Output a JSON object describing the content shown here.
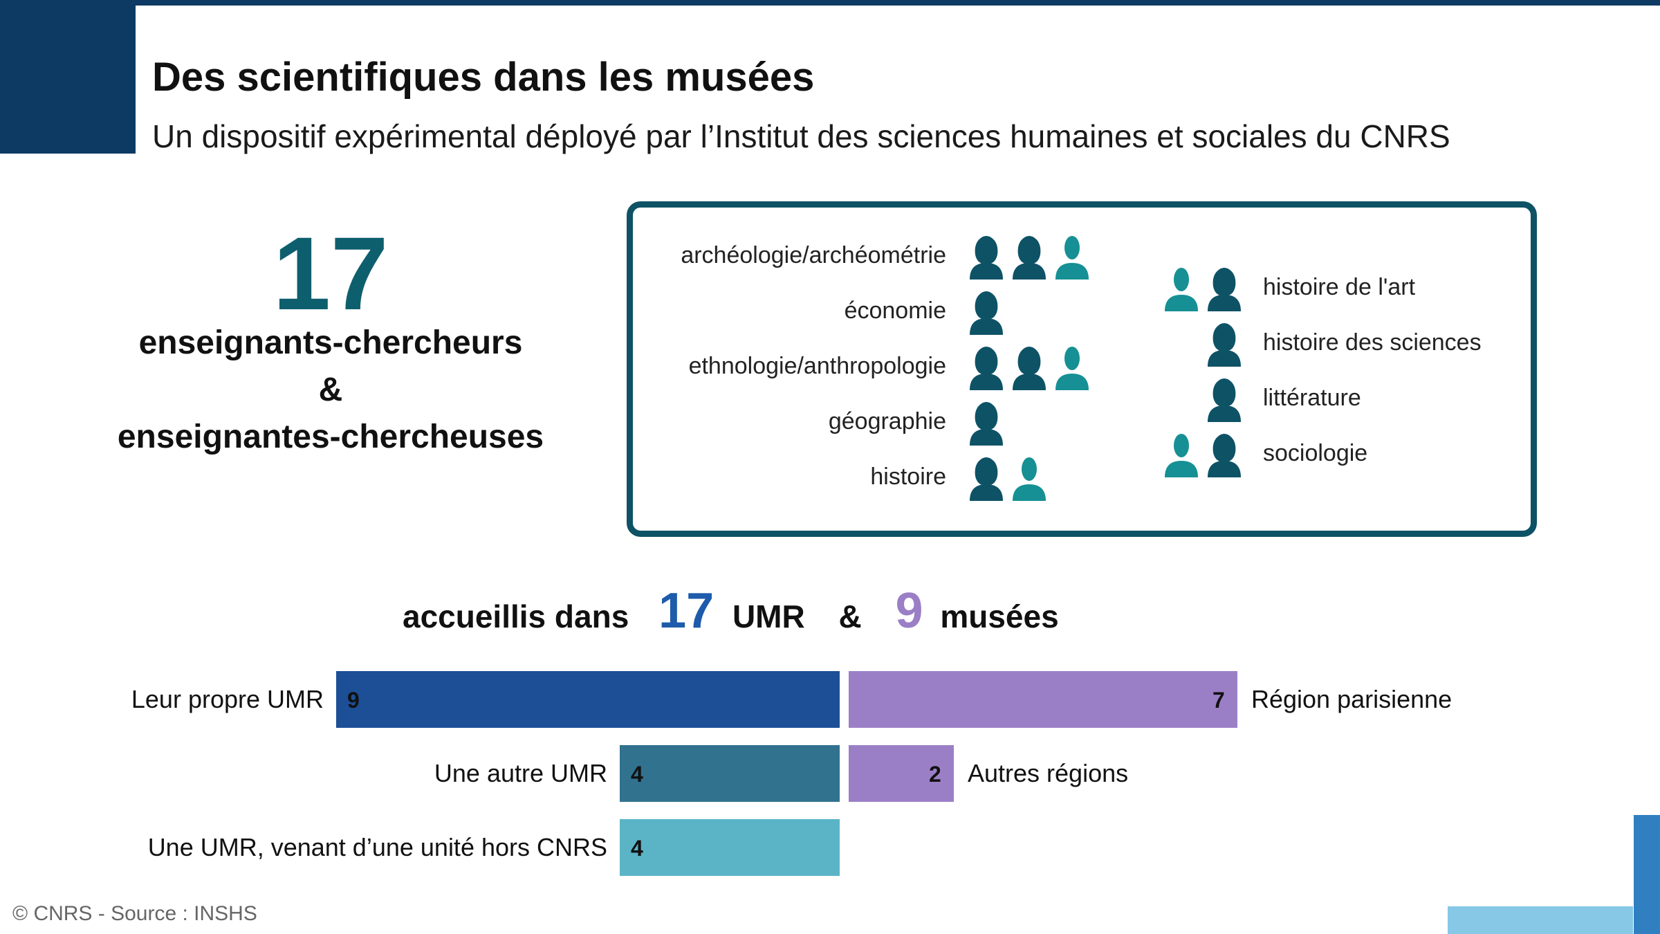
{
  "header": {
    "title": "Des scientifiques dans les musées",
    "subtitle": "Un dispositif expérimental déployé par l’Institut des sciences humaines et sociales du CNRS"
  },
  "summary": {
    "count": "17",
    "line1": "enseignants-chercheurs",
    "ampersand": "&",
    "line2": "enseignantes-chercheuses"
  },
  "disciplines": {
    "left": [
      {
        "label": "archéologie/archéométrie",
        "people": [
          "dark",
          "dark",
          "teal"
        ]
      },
      {
        "label": "économie",
        "people": [
          "dark"
        ]
      },
      {
        "label": "ethnologie/anthropologie",
        "people": [
          "dark",
          "dark",
          "teal"
        ]
      },
      {
        "label": "géographie",
        "people": [
          "dark"
        ]
      },
      {
        "label": "histoire",
        "people": [
          "dark",
          "teal"
        ]
      }
    ],
    "right": [
      {
        "label": "histoire de l'art",
        "people": [
          "teal",
          "dark"
        ]
      },
      {
        "label": "histoire des sciences",
        "people": [
          "dark"
        ]
      },
      {
        "label": "littérature",
        "people": [
          "dark"
        ]
      },
      {
        "label": "sociologie",
        "people": [
          "teal",
          "dark"
        ]
      }
    ]
  },
  "hosted": {
    "prefix": "accueillis dans",
    "umr_count": "17",
    "umr_label": "UMR",
    "ampersand": "&",
    "museum_count": "9",
    "museum_label": "musées"
  },
  "chart_data": [
    {
      "type": "bar",
      "categories": [
        "Leur propre UMR",
        "Une autre UMR",
        "Une UMR, venant d’une unité hors CNRS"
      ],
      "values": [
        9,
        4,
        4
      ],
      "colors": [
        "#1c4f96",
        "#31728f",
        "#5ab4c6"
      ]
    },
    {
      "type": "bar",
      "categories": [
        "Région parisienne",
        "Autres régions"
      ],
      "values": [
        7,
        2
      ],
      "colors": [
        "#9b7fc6",
        "#9b7fc6"
      ]
    }
  ],
  "footer": {
    "credit": "© CNRS - Source : INSHS"
  },
  "colors": {
    "navy": "#0d3a63",
    "teal_dark": "#0e5266",
    "teal_light": "#169094",
    "umr_blue": "#1d5bab",
    "museum_purple": "#9b7fc6"
  }
}
